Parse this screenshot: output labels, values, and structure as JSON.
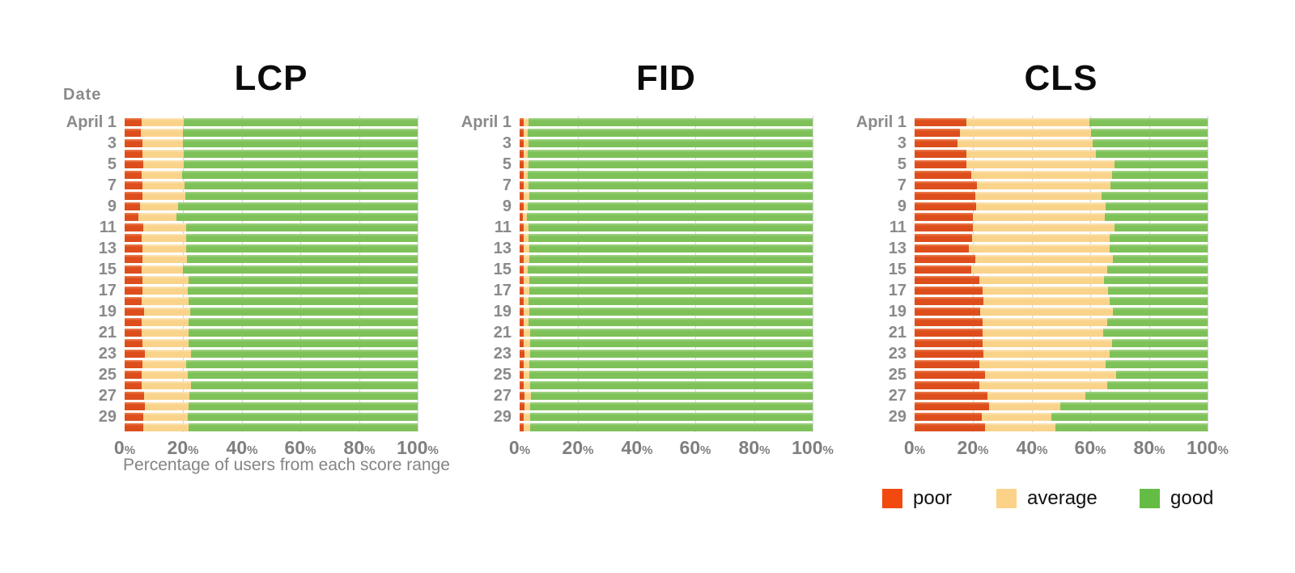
{
  "page": {
    "background": "#ffffff"
  },
  "axis": {
    "ylabel": "Date",
    "xlabel": "Percentage of users from each score range",
    "tick_color": "#7f7f7f",
    "grid_color": "#d4d4d4"
  },
  "legend": {
    "position": "below-cls-chart",
    "items": [
      {
        "label": "poor",
        "color": "#F2490F"
      },
      {
        "label": "average",
        "color": "#FBD288"
      },
      {
        "label": "good",
        "color": "#64BC45"
      }
    ]
  },
  "chart_data": [
    {
      "type": "bar",
      "orientation": "horizontal-stacked",
      "title": "LCP",
      "ylabel": "Date",
      "xlabel": "Percentage of users from each score range",
      "xlim": [
        0,
        100
      ],
      "grid": true,
      "x_ticks": [
        "0%",
        "20%",
        "40%",
        "60%",
        "80%",
        "100%"
      ],
      "categories": [
        "April 1",
        "April 2",
        "April 3",
        "April 4",
        "April 5",
        "April 6",
        "April 7",
        "April 8",
        "April 9",
        "April 10",
        "April 11",
        "April 12",
        "April 13",
        "April 14",
        "April 15",
        "April 16",
        "April 17",
        "April 18",
        "April 19",
        "April 20",
        "April 21",
        "April 22",
        "April 23",
        "April 24",
        "April 25",
        "April 26",
        "April 27",
        "April 28",
        "April 29",
        "April 30"
      ],
      "row_labels": [
        "April 1",
        "",
        "3",
        "",
        "5",
        "",
        "7",
        "",
        "9",
        "",
        "11",
        "",
        "13",
        "",
        "15",
        "",
        "17",
        "",
        "19",
        "",
        "21",
        "",
        "23",
        "",
        "25",
        "",
        "27",
        "",
        "29",
        ""
      ],
      "series": [
        {
          "name": "poor",
          "color": "#DD4E1C",
          "color_top": "#EE8252",
          "values": [
            5.8,
            5.6,
            6.1,
            6.1,
            6.3,
            5.8,
            6.1,
            6.1,
            5.2,
            4.6,
            6.3,
            5.8,
            6.1,
            6.1,
            5.8,
            6.1,
            6.1,
            5.8,
            6.7,
            5.8,
            5.8,
            6.1,
            7.0,
            6.1,
            5.8,
            5.8,
            6.7,
            7.0,
            6.3,
            6.3
          ]
        },
        {
          "name": "average",
          "color": "#FAD38A",
          "color_top": "#FCE8C0",
          "values": [
            14.3,
            14.3,
            13.7,
            14.0,
            13.9,
            13.7,
            14.3,
            14.6,
            13.1,
            13.1,
            14.7,
            15.1,
            14.9,
            15.2,
            14.1,
            15.8,
            15.5,
            16.1,
            15.8,
            16.1,
            16.0,
            15.8,
            15.7,
            14.9,
            15.8,
            16.9,
            15.5,
            14.9,
            15.3,
            15.5
          ]
        },
        {
          "name": "good",
          "color": "#7EC159",
          "color_top": "#A8D68C",
          "values": [
            79.9,
            80.1,
            80.2,
            79.9,
            79.8,
            80.5,
            79.6,
            79.3,
            81.7,
            82.3,
            79.0,
            79.1,
            79.0,
            78.7,
            80.1,
            78.1,
            78.4,
            78.1,
            77.5,
            78.1,
            78.2,
            78.1,
            77.3,
            79.0,
            78.4,
            77.3,
            77.8,
            78.1,
            78.4,
            78.2
          ]
        }
      ]
    },
    {
      "type": "bar",
      "orientation": "horizontal-stacked",
      "title": "FID",
      "ylabel": "Date",
      "xlabel": "",
      "xlim": [
        0,
        100
      ],
      "grid": true,
      "x_ticks": [
        "0%",
        "20%",
        "40%",
        "60%",
        "80%",
        "100%"
      ],
      "categories": [
        "April 1",
        "April 2",
        "April 3",
        "April 4",
        "April 5",
        "April 6",
        "April 7",
        "April 8",
        "April 9",
        "April 10",
        "April 11",
        "April 12",
        "April 13",
        "April 14",
        "April 15",
        "April 16",
        "April 17",
        "April 18",
        "April 19",
        "April 20",
        "April 21",
        "April 22",
        "April 23",
        "April 24",
        "April 25",
        "April 26",
        "April 27",
        "April 28",
        "April 29",
        "April 30"
      ],
      "row_labels": [
        "April 1",
        "",
        "3",
        "",
        "5",
        "",
        "7",
        "",
        "9",
        "",
        "11",
        "",
        "13",
        "",
        "15",
        "",
        "17",
        "",
        "19",
        "",
        "21",
        "",
        "23",
        "",
        "25",
        "",
        "27",
        "",
        "29",
        ""
      ],
      "series": [
        {
          "name": "poor",
          "color": "#DD4E1C",
          "color_top": "#EE8252",
          "values": [
            1.4,
            1.3,
            1.4,
            1.3,
            1.4,
            1.3,
            1.4,
            1.5,
            1.3,
            1.2,
            1.4,
            1.4,
            1.5,
            1.4,
            1.3,
            1.4,
            1.5,
            1.4,
            1.5,
            1.4,
            1.5,
            1.5,
            1.6,
            1.4,
            1.4,
            1.5,
            1.6,
            1.6,
            1.5,
            1.5
          ]
        },
        {
          "name": "average",
          "color": "#FAD38A",
          "color_top": "#FCE8C0",
          "values": [
            1.6,
            1.5,
            1.6,
            1.5,
            1.7,
            1.6,
            1.6,
            1.7,
            1.5,
            1.4,
            1.7,
            1.6,
            1.7,
            1.8,
            1.6,
            1.8,
            1.8,
            1.7,
            1.9,
            1.7,
            2.0,
            2.1,
            1.9,
            1.8,
            1.9,
            2.0,
            2.2,
            2.1,
            2.0,
            2.1
          ]
        },
        {
          "name": "good",
          "color": "#7EC159",
          "color_top": "#A8D68C",
          "values": [
            97.0,
            97.2,
            97.0,
            97.2,
            96.9,
            97.1,
            97.0,
            96.8,
            97.2,
            97.4,
            96.9,
            97.0,
            96.8,
            96.8,
            97.1,
            96.8,
            96.7,
            96.9,
            96.6,
            96.9,
            96.5,
            96.4,
            96.5,
            96.8,
            96.7,
            96.5,
            96.2,
            96.3,
            96.5,
            96.4
          ]
        }
      ]
    },
    {
      "type": "bar",
      "orientation": "horizontal-stacked",
      "title": "CLS",
      "ylabel": "Date",
      "xlabel": "",
      "xlim": [
        0,
        100
      ],
      "grid": true,
      "legend_position": "bottom",
      "x_ticks": [
        "0%",
        "20%",
        "40%",
        "60%",
        "80%",
        "100%"
      ],
      "categories": [
        "April 1",
        "April 2",
        "April 3",
        "April 4",
        "April 5",
        "April 6",
        "April 7",
        "April 8",
        "April 9",
        "April 10",
        "April 11",
        "April 12",
        "April 13",
        "April 14",
        "April 15",
        "April 16",
        "April 17",
        "April 18",
        "April 19",
        "April 20",
        "April 21",
        "April 22",
        "April 23",
        "April 24",
        "April 25",
        "April 26",
        "April 27",
        "April 28",
        "April 29",
        "April 30"
      ],
      "row_labels": [
        "April 1",
        "",
        "3",
        "",
        "5",
        "",
        "7",
        "",
        "9",
        "",
        "11",
        "",
        "13",
        "",
        "15",
        "",
        "17",
        "",
        "19",
        "",
        "21",
        "",
        "23",
        "",
        "25",
        "",
        "27",
        "",
        "29",
        ""
      ],
      "series": [
        {
          "name": "poor",
          "color": "#DD4E1C",
          "color_top": "#EE8252",
          "values": [
            17.8,
            15.6,
            14.7,
            17.8,
            17.8,
            19.4,
            21.4,
            20.6,
            21.1,
            20.0,
            20.0,
            19.7,
            18.6,
            20.6,
            19.2,
            22.2,
            23.1,
            23.6,
            22.5,
            23.1,
            23.1,
            23.3,
            23.6,
            22.2,
            24.1,
            22.2,
            24.8,
            25.5,
            23.0,
            23.9
          ]
        },
        {
          "name": "average",
          "color": "#FAD38A",
          "color_top": "#FCE8C0",
          "values": [
            41.9,
            44.7,
            46.1,
            44.1,
            50.3,
            48.1,
            45.5,
            43.3,
            44.2,
            45.0,
            48.1,
            47.0,
            48.1,
            47.2,
            46.6,
            42.5,
            43.0,
            43.1,
            45.3,
            42.7,
            41.3,
            44.2,
            43.1,
            43.1,
            44.6,
            43.5,
            33.5,
            24.2,
            23.8,
            24.1
          ]
        },
        {
          "name": "good",
          "color": "#7EC159",
          "color_top": "#A8D68C",
          "values": [
            40.3,
            39.7,
            39.2,
            38.1,
            31.9,
            32.5,
            33.1,
            36.1,
            34.7,
            35.0,
            31.9,
            33.3,
            33.3,
            32.2,
            34.2,
            35.3,
            33.9,
            33.3,
            32.2,
            34.2,
            35.6,
            32.5,
            33.3,
            34.7,
            31.3,
            34.3,
            41.7,
            50.3,
            53.2,
            52.0
          ]
        }
      ]
    }
  ]
}
